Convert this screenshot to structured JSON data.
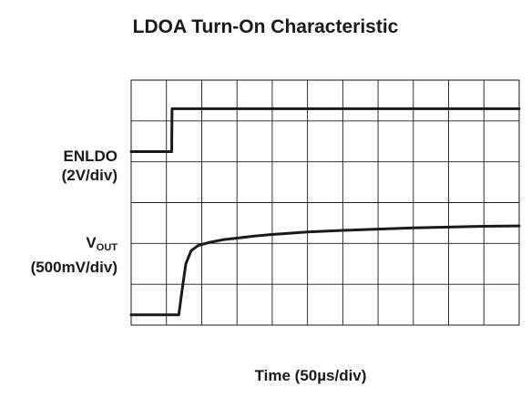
{
  "chart_data": {
    "type": "line",
    "title": "LDOA Turn-On Characteristic",
    "xlabel": "Time (50µs/div)",
    "x_divisions": 11,
    "y_divisions": 6,
    "grid": true,
    "xlim": [
      0,
      11
    ],
    "ylim": [
      0,
      6
    ],
    "series": [
      {
        "name": "ENLDO",
        "scale_label": "(2V/div)",
        "x": [
          0,
          1.15,
          1.16,
          2,
          3,
          4,
          5,
          6,
          7,
          8,
          9,
          10,
          11
        ],
        "y": [
          4.25,
          4.25,
          5.3,
          5.3,
          5.3,
          5.3,
          5.3,
          5.3,
          5.3,
          5.3,
          5.3,
          5.3,
          5.3
        ]
      },
      {
        "name": "V",
        "name_subscript": "OUT",
        "scale_label": "(500mV/div)",
        "x": [
          0,
          1.35,
          1.45,
          1.55,
          1.7,
          1.9,
          2.2,
          2.6,
          3,
          3.5,
          4,
          5,
          6,
          7,
          8,
          9,
          10,
          11
        ],
        "y": [
          0.25,
          0.25,
          0.9,
          1.5,
          1.82,
          1.95,
          2.02,
          2.09,
          2.13,
          2.18,
          2.22,
          2.28,
          2.32,
          2.35,
          2.38,
          2.4,
          2.42,
          2.43
        ]
      }
    ]
  }
}
